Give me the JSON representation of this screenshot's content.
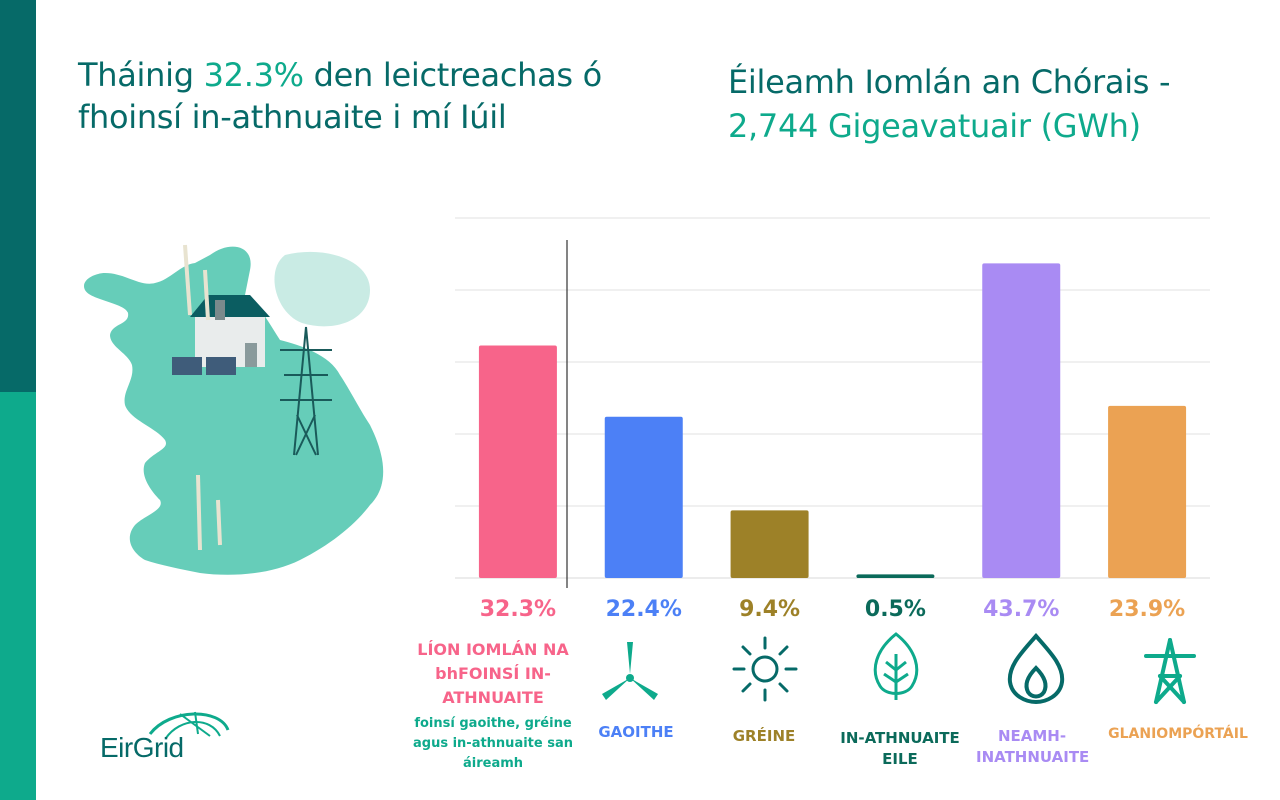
{
  "title_left": {
    "part1": "Tháinig ",
    "highlight": "32.3%",
    "part2": " den leictreachas ó fhoinsí in-athnuaite i mí Iúil"
  },
  "title_right": {
    "line1": "Éileamh Iomlán an Chórais -",
    "line2": "2,744 Gigeavatuair (GWh)"
  },
  "logo_text": "EirGrid",
  "colors": {
    "dark_teal": "#066a68",
    "teal": "#0eaa8c",
    "pink": "#f7648a",
    "blue": "#4c80f6",
    "olive": "#9d8128",
    "deep_green": "#0b6a5a",
    "purple": "#a98bf3",
    "orange": "#eba253"
  },
  "categories": [
    {
      "pct": "32.3%",
      "label": "LÍON IOMLÁN NA bhFOINSÍ IN-ATHNUAITE",
      "icon": "none",
      "color": "#f7648a",
      "text_color": "#f7648a"
    },
    {
      "pct": "22.4%",
      "label": "GAOITHE",
      "icon": "wind-turbine-icon",
      "color": "#4c80f6",
      "text_color": "#4c80f6"
    },
    {
      "pct": "9.4%",
      "label": "GRÉINE",
      "icon": "sun-icon",
      "color": "#9d8128",
      "text_color": "#9d8128"
    },
    {
      "pct": "0.5%",
      "label": "IN-ATHNUAITE EILE",
      "icon": "leaf-icon",
      "color": "#0b6a5a",
      "text_color": "#0b6a5a"
    },
    {
      "pct": "43.7%",
      "label": "NEAMH-INATHNUAITE",
      "icon": "flame-icon",
      "color": "#a98bf3",
      "text_color": "#a98bf3"
    },
    {
      "pct": "23.9%",
      "label": "GLANIOMPÓRTÁIL",
      "icon": "pylon-icon",
      "color": "#eba253",
      "text_color": "#eba253"
    }
  ],
  "note": "foinsí gaoithe, gréine agus in-athnuaite san áireamh",
  "chart_data": {
    "type": "bar",
    "categories": [
      "LÍON IOMLÁN NA bhFOINSÍ IN-ATHNUAITE",
      "GAOITHE",
      "GRÉINE",
      "IN-ATHNUAITE EILE",
      "NEAMH-INATHNUAITE",
      "GLANIOMPÓRTÁIL"
    ],
    "values": [
      32.3,
      22.4,
      9.4,
      0.5,
      43.7,
      23.9
    ],
    "ylim": [
      0,
      50
    ],
    "grid": true,
    "title": "",
    "xlabel": "",
    "ylabel": ""
  }
}
